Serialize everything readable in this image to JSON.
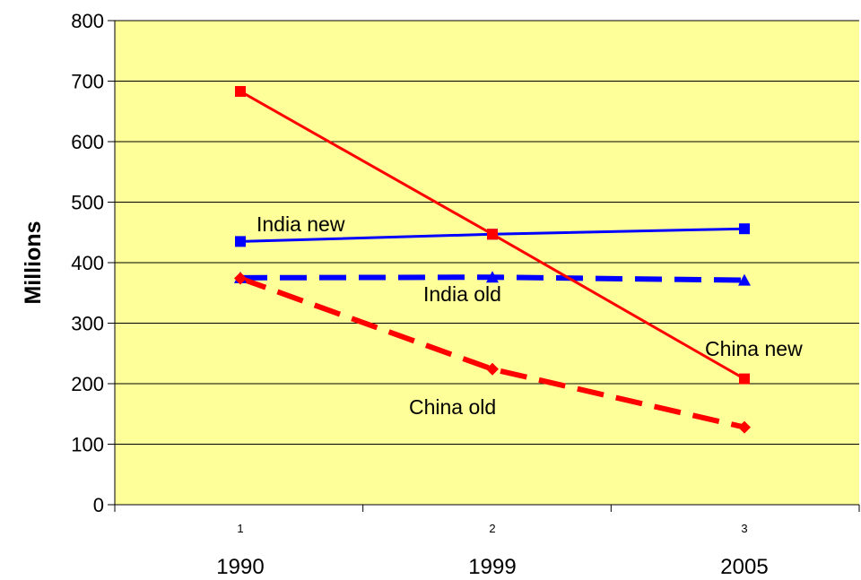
{
  "chart_data": {
    "type": "line",
    "title": "",
    "xlabel": "",
    "ylabel": "Millions",
    "categories": [
      "1",
      "2",
      "3"
    ],
    "years": [
      "1990",
      "1999",
      "2005"
    ],
    "ylim": [
      0,
      800
    ],
    "yticks": [
      0,
      100,
      200,
      300,
      400,
      500,
      600,
      700,
      800
    ],
    "grid": true,
    "background": "#ffff99",
    "series": [
      {
        "name": "India new",
        "values": [
          435,
          447,
          456
        ],
        "color": "#0000ff",
        "dashed": false,
        "marker": "square"
      },
      {
        "name": "India old",
        "values": [
          375,
          376,
          371
        ],
        "color": "#0000ff",
        "dashed": true,
        "marker": "triangle"
      },
      {
        "name": "China new",
        "values": [
          683,
          447,
          208
        ],
        "color": "#ff0000",
        "dashed": false,
        "marker": "square"
      },
      {
        "name": "China old",
        "values": [
          374,
          224,
          128
        ],
        "color": "#ff0000",
        "dashed": true,
        "marker": "diamond"
      }
    ]
  }
}
